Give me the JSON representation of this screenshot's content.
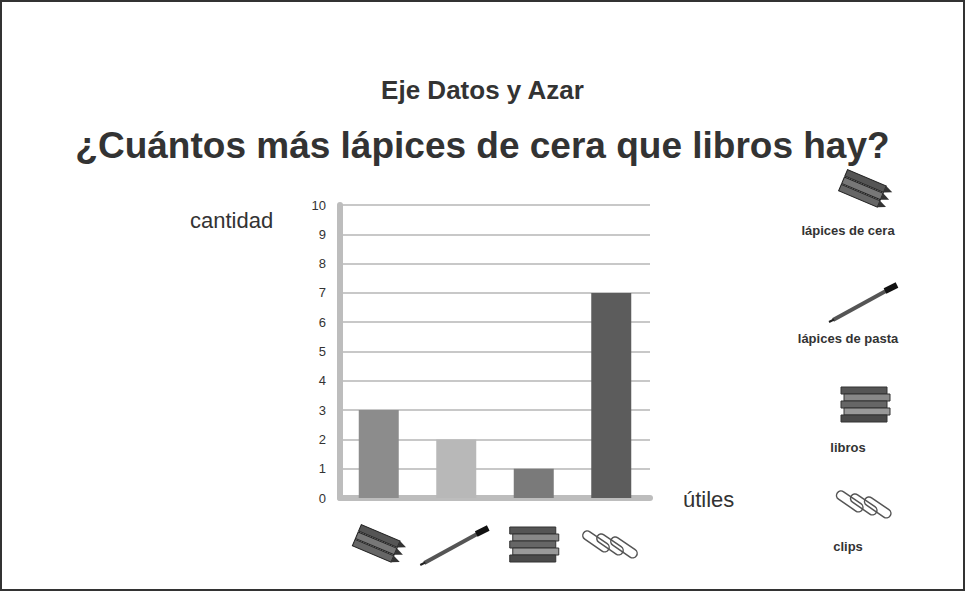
{
  "chart_data": {
    "type": "bar",
    "title": "¿Cuántos más lápices de cera que libros hay?",
    "subtitle": "Eje Datos y Azar",
    "x_label": "útiles",
    "y_label": "cantidad",
    "categories": [
      "lápices de cera",
      "lápices de pasta",
      "libros",
      "clips"
    ],
    "values": [
      3,
      2,
      1,
      7
    ],
    "colors": [
      "#8c8c8c",
      "#b8b8b8",
      "#7a7a7a",
      "#5c5c5c"
    ],
    "ylim": [
      0,
      10
    ],
    "yticks": [
      0,
      1,
      2,
      3,
      4,
      5,
      6,
      7,
      8,
      9,
      10
    ],
    "grid": true,
    "tick_labels": "y"
  }
}
